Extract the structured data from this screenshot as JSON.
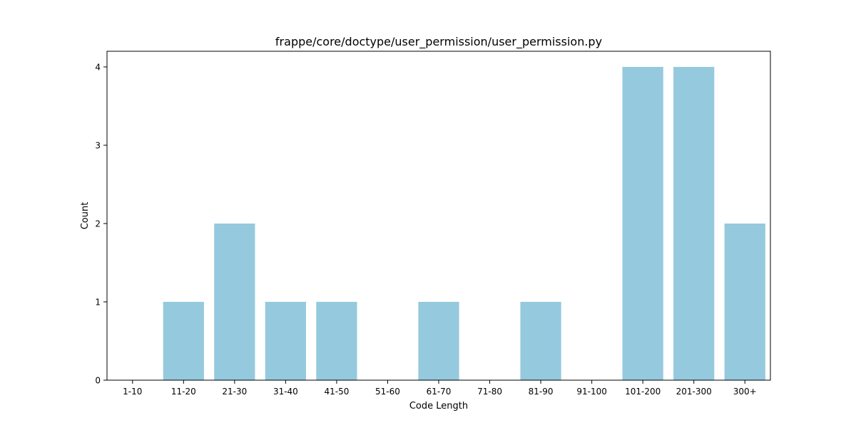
{
  "chart_data": {
    "type": "bar",
    "title": "frappe/core/doctype/user_permission/user_permission.py",
    "xlabel": "Code Length",
    "ylabel": "Count",
    "categories": [
      "1-10",
      "11-20",
      "21-30",
      "31-40",
      "41-50",
      "51-60",
      "61-70",
      "71-80",
      "81-90",
      "91-100",
      "101-200",
      "201-300",
      "300+"
    ],
    "values": [
      0,
      1,
      2,
      1,
      1,
      0,
      1,
      0,
      1,
      0,
      4,
      4,
      2
    ],
    "yticks": [
      "0",
      "1",
      "2",
      "3",
      "4"
    ],
    "ylim": [
      0,
      4.2
    ],
    "bar_color": "#95c9de",
    "grid": false,
    "legend": "none"
  }
}
